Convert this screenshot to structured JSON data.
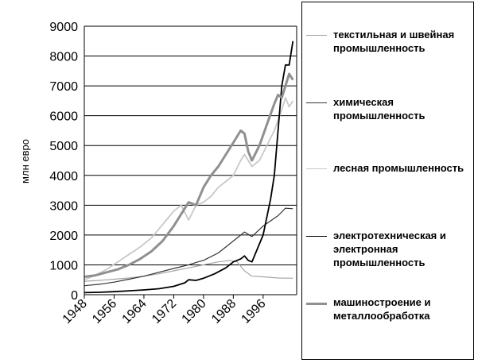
{
  "chart_data": {
    "type": "line",
    "ylabel": "млн евро",
    "xlabel": "",
    "ylim": [
      0,
      9000
    ],
    "xlim": [
      1948,
      2005
    ],
    "y_ticks": [
      0,
      1000,
      2000,
      3000,
      4000,
      5000,
      6000,
      7000,
      8000,
      9000
    ],
    "x_ticks": [
      "1948",
      "1956",
      "1964",
      "1972",
      "1980",
      "1988",
      "1996"
    ],
    "grid": "horizontal",
    "legend_position": "right",
    "series": [
      {
        "name": "текстильная и швейная промышленность",
        "color": "#a6a6a6",
        "width": 1.2,
        "points": [
          [
            1948,
            450
          ],
          [
            1952,
            480
          ],
          [
            1956,
            520
          ],
          [
            1960,
            560
          ],
          [
            1964,
            620
          ],
          [
            1968,
            700
          ],
          [
            1972,
            800
          ],
          [
            1976,
            900
          ],
          [
            1980,
            1000
          ],
          [
            1984,
            1100
          ],
          [
            1987,
            1150
          ],
          [
            1989,
            1100
          ],
          [
            1991,
            800
          ],
          [
            1993,
            620
          ],
          [
            1996,
            600
          ],
          [
            2000,
            560
          ],
          [
            2004,
            550
          ]
        ]
      },
      {
        "name": "химическая промышленность",
        "color": "#333333",
        "width": 1.2,
        "points": [
          [
            1948,
            300
          ],
          [
            1952,
            350
          ],
          [
            1956,
            420
          ],
          [
            1960,
            520
          ],
          [
            1964,
            620
          ],
          [
            1968,
            750
          ],
          [
            1972,
            880
          ],
          [
            1976,
            1000
          ],
          [
            1978,
            1080
          ],
          [
            1980,
            1150
          ],
          [
            1984,
            1400
          ],
          [
            1988,
            1800
          ],
          [
            1991,
            2100
          ],
          [
            1993,
            1950
          ],
          [
            1996,
            2300
          ],
          [
            2000,
            2650
          ],
          [
            2002,
            2900
          ],
          [
            2004,
            2880
          ]
        ]
      },
      {
        "name": "лесная промышленность",
        "color": "#c8c8c8",
        "width": 1.8,
        "points": [
          [
            1948,
            500
          ],
          [
            1951,
            650
          ],
          [
            1954,
            850
          ],
          [
            1957,
            1100
          ],
          [
            1960,
            1350
          ],
          [
            1963,
            1600
          ],
          [
            1966,
            1900
          ],
          [
            1968,
            2200
          ],
          [
            1970,
            2500
          ],
          [
            1972,
            2800
          ],
          [
            1974,
            3000
          ],
          [
            1976,
            2500
          ],
          [
            1978,
            3000
          ],
          [
            1980,
            3100
          ],
          [
            1982,
            3300
          ],
          [
            1984,
            3600
          ],
          [
            1986,
            3800
          ],
          [
            1988,
            4000
          ],
          [
            1990,
            4500
          ],
          [
            1991,
            4700
          ],
          [
            1993,
            4300
          ],
          [
            1995,
            4500
          ],
          [
            1997,
            5000
          ],
          [
            1999,
            5500
          ],
          [
            2001,
            6200
          ],
          [
            2002,
            6600
          ],
          [
            2003,
            6300
          ],
          [
            2004,
            6500
          ]
        ]
      },
      {
        "name": "электротехническая и электронная промышленность",
        "color": "#000000",
        "width": 1.8,
        "points": [
          [
            1948,
            70
          ],
          [
            1952,
            80
          ],
          [
            1956,
            100
          ],
          [
            1960,
            130
          ],
          [
            1964,
            160
          ],
          [
            1968,
            200
          ],
          [
            1972,
            280
          ],
          [
            1975,
            400
          ],
          [
            1976,
            500
          ],
          [
            1978,
            480
          ],
          [
            1980,
            550
          ],
          [
            1983,
            700
          ],
          [
            1986,
            900
          ],
          [
            1988,
            1100
          ],
          [
            1990,
            1200
          ],
          [
            1991,
            1300
          ],
          [
            1992,
            1150
          ],
          [
            1993,
            1100
          ],
          [
            1994,
            1400
          ],
          [
            1996,
            2000
          ],
          [
            1998,
            3200
          ],
          [
            1999,
            4000
          ],
          [
            2000,
            5500
          ],
          [
            2001,
            7000
          ],
          [
            2002,
            7700
          ],
          [
            2003,
            7700
          ],
          [
            2004,
            8500
          ]
        ]
      },
      {
        "name": "машиностроение и металлообработка",
        "color": "#909090",
        "width": 3,
        "points": [
          [
            1948,
            600
          ],
          [
            1951,
            650
          ],
          [
            1954,
            750
          ],
          [
            1957,
            850
          ],
          [
            1960,
            1000
          ],
          [
            1963,
            1200
          ],
          [
            1966,
            1450
          ],
          [
            1969,
            1800
          ],
          [
            1972,
            2300
          ],
          [
            1974,
            2700
          ],
          [
            1976,
            3100
          ],
          [
            1978,
            3000
          ],
          [
            1980,
            3600
          ],
          [
            1982,
            4000
          ],
          [
            1984,
            4300
          ],
          [
            1986,
            4700
          ],
          [
            1988,
            5100
          ],
          [
            1990,
            5500
          ],
          [
            1991,
            5400
          ],
          [
            1992,
            4800
          ],
          [
            1993,
            4500
          ],
          [
            1995,
            5000
          ],
          [
            1997,
            5700
          ],
          [
            1999,
            6400
          ],
          [
            2000,
            6700
          ],
          [
            2001,
            6600
          ],
          [
            2002,
            7000
          ],
          [
            2003,
            7400
          ],
          [
            2004,
            7200
          ]
        ]
      }
    ]
  }
}
